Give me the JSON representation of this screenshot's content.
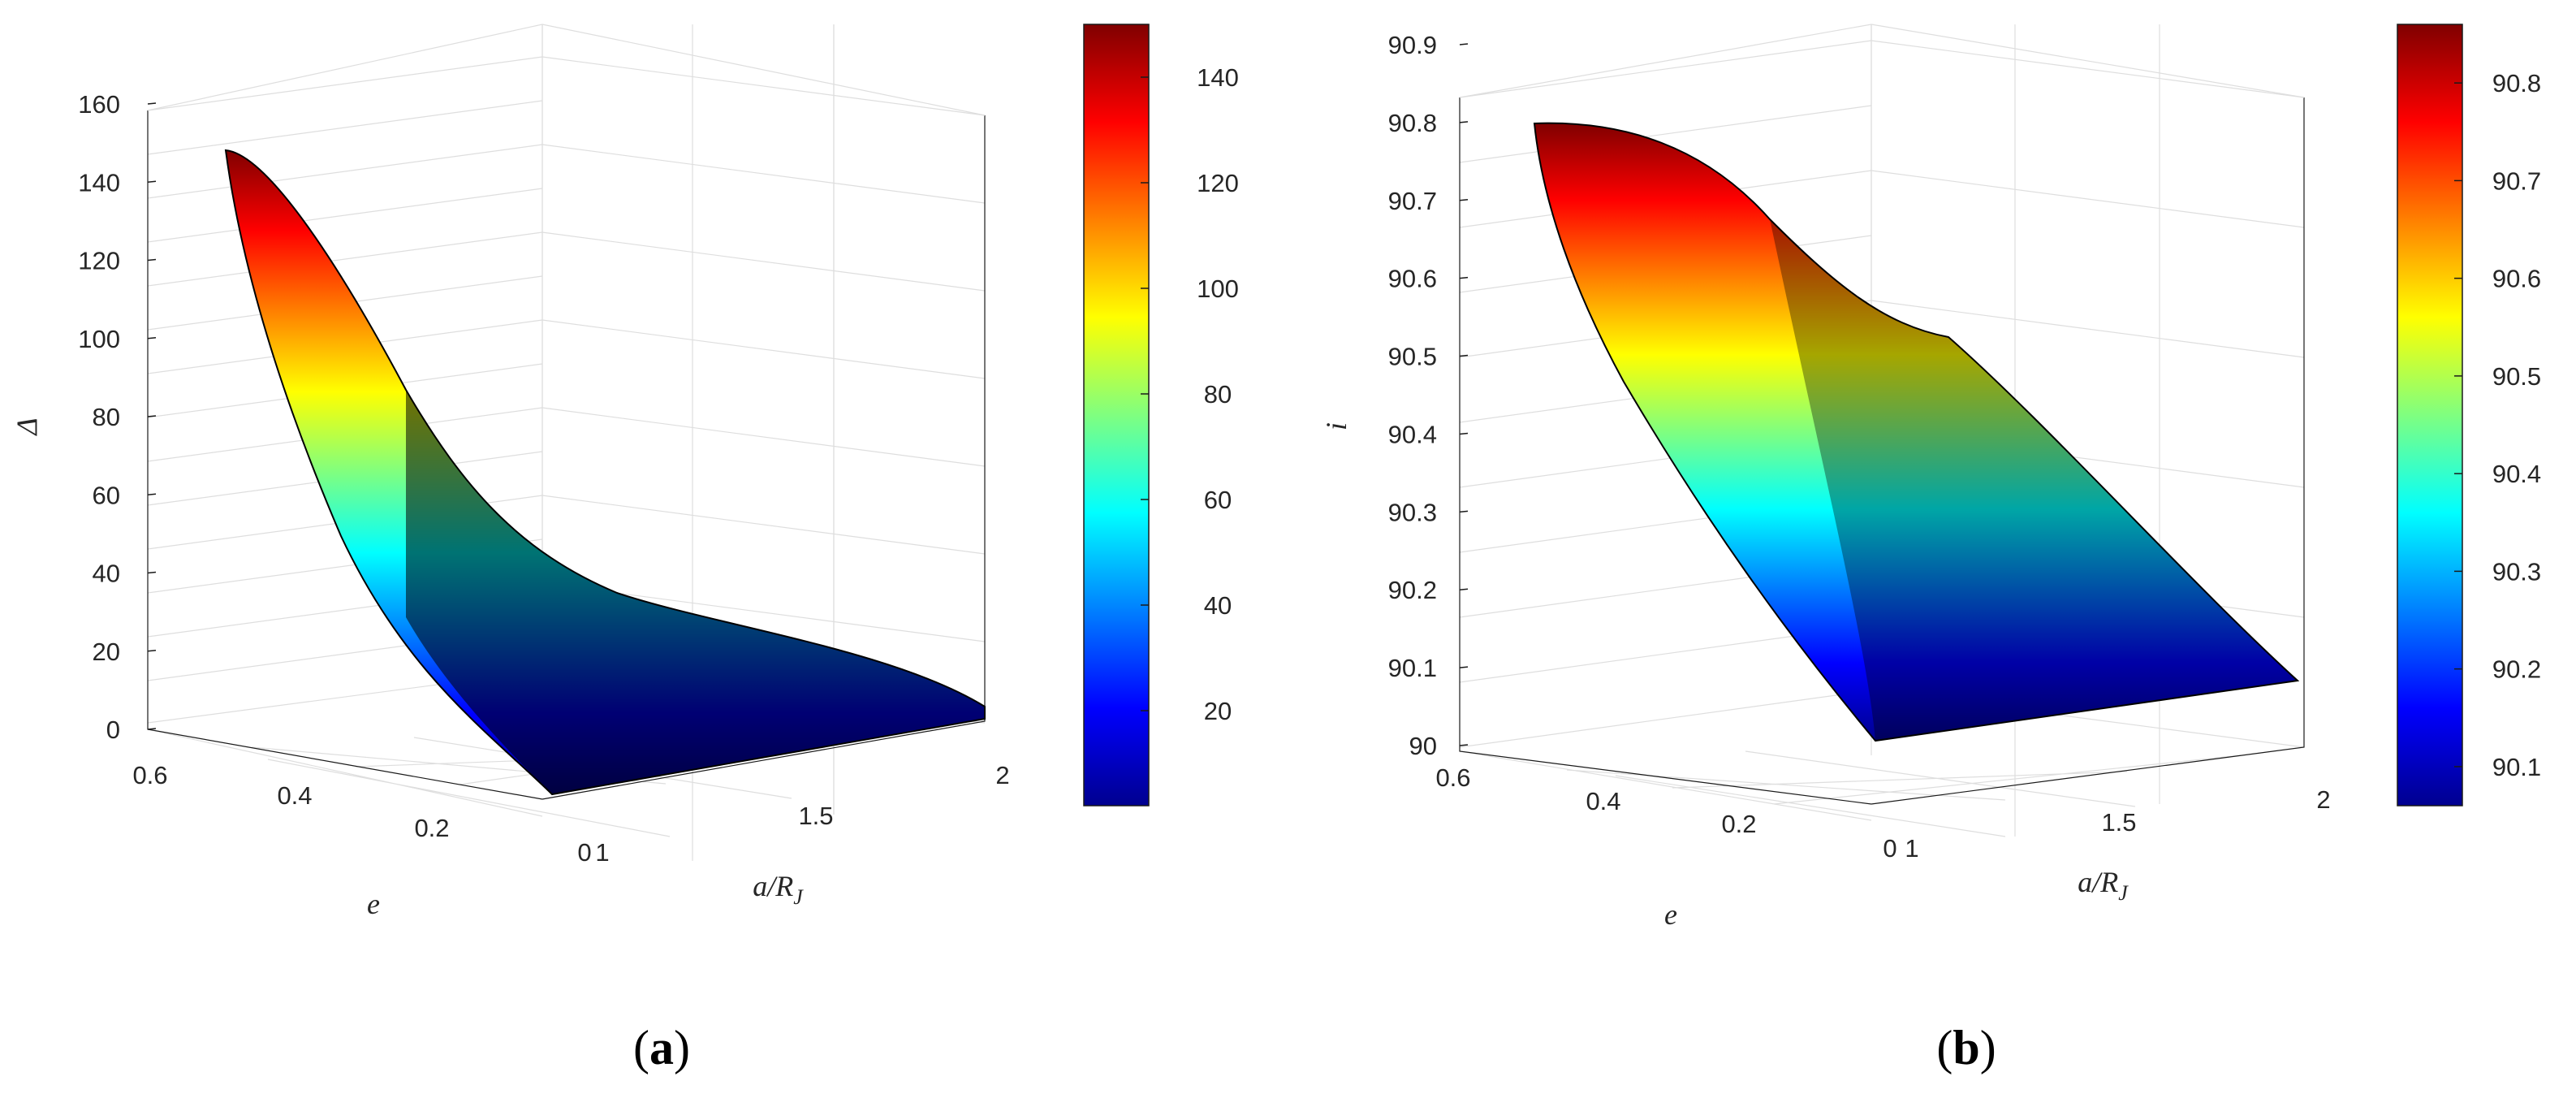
{
  "chart_data": [
    {
      "type": "surface",
      "panel_label": "a",
      "xlabel_base": "a/R",
      "xlabel_sub": "J",
      "ylabel": "e",
      "zlabel": "Δ",
      "xlim": [
        1,
        2
      ],
      "ylim": [
        0,
        0.6
      ],
      "zlim": [
        0,
        160
      ],
      "x_ticks": [
        "1",
        "1.5",
        "2"
      ],
      "y_ticks": [
        "0",
        "0.2",
        "0.4",
        "0.6"
      ],
      "z_ticks": [
        "0",
        "20",
        "40",
        "60",
        "80",
        "100",
        "120",
        "140",
        "160"
      ],
      "colorbar": {
        "min": 2,
        "max": 150,
        "ticks": [
          "20",
          "40",
          "60",
          "80",
          "100",
          "120",
          "140"
        ]
      },
      "colormap": "jet",
      "grid": true,
      "surface_corners": [
        {
          "x": 1,
          "y": 0.5,
          "z": 148
        },
        {
          "x": 1,
          "y": 0,
          "z": 0
        },
        {
          "x": 2,
          "y": 0,
          "z": 2
        },
        {
          "x": 2,
          "y": 0.5,
          "z": 25
        }
      ]
    },
    {
      "type": "surface",
      "panel_label": "b",
      "xlabel_base": "a/R",
      "xlabel_sub": "J",
      "ylabel": "e",
      "zlabel": "i",
      "xlim": [
        1,
        2
      ],
      "ylim": [
        0,
        0.6
      ],
      "zlim": [
        90,
        90.9
      ],
      "x_ticks": [
        "1",
        "1.5",
        "2"
      ],
      "y_ticks": [
        "0",
        "0.2",
        "0.4",
        "0.6"
      ],
      "z_ticks": [
        "90",
        "90.1",
        "90.2",
        "90.3",
        "90.4",
        "90.5",
        "90.6",
        "90.7",
        "90.8",
        "90.9"
      ],
      "colorbar": {
        "min": 90.06,
        "max": 90.86,
        "ticks": [
          "90.1",
          "90.2",
          "90.3",
          "90.4",
          "90.5",
          "90.6",
          "90.7",
          "90.8"
        ]
      },
      "colormap": "jet",
      "grid": true,
      "surface_corners": [
        {
          "x": 1,
          "y": 0.55,
          "z": 90.84
        },
        {
          "x": 1,
          "y": 0,
          "z": 90.06
        },
        {
          "x": 2,
          "y": 0,
          "z": 90.08
        },
        {
          "x": 2,
          "y": 0.5,
          "z": 90.6
        }
      ]
    }
  ]
}
